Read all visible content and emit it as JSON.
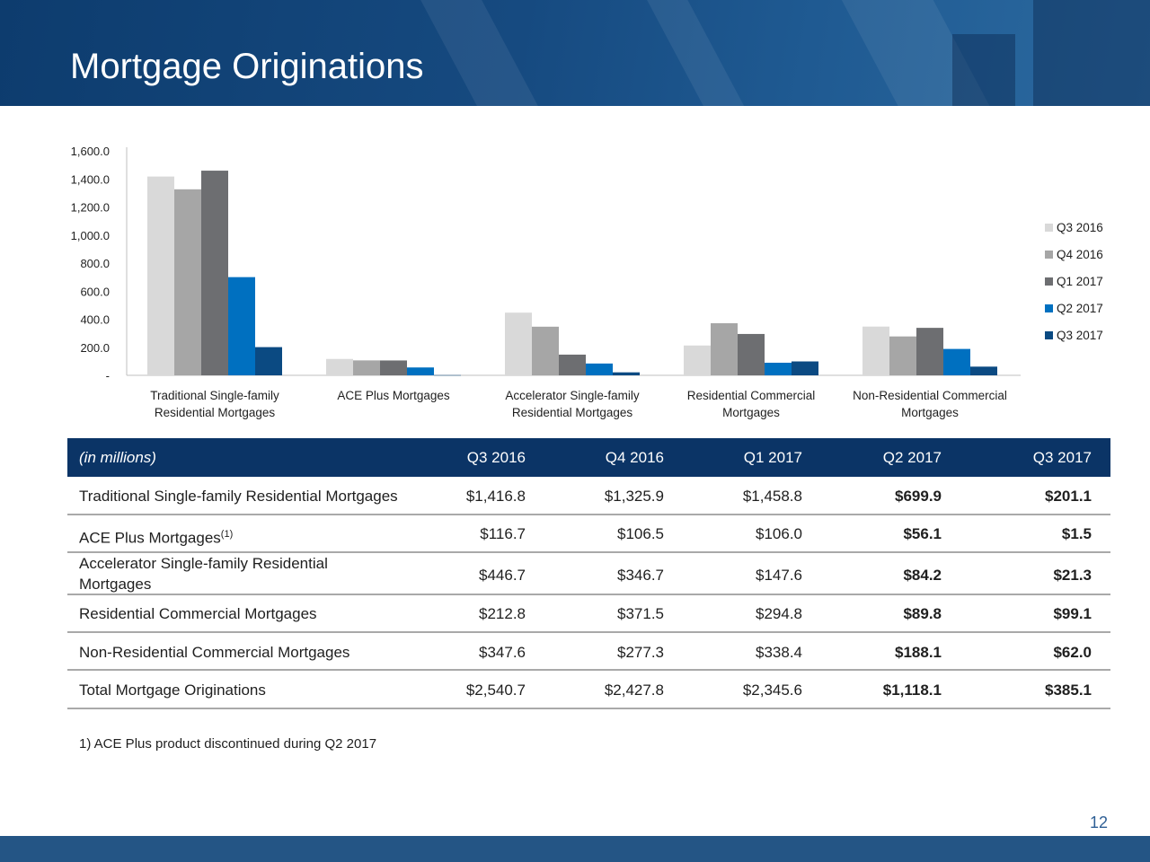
{
  "slide": {
    "title": "Mortgage Originations",
    "page_number": "12",
    "footnote": "1) ACE Plus product discontinued during Q2 2017"
  },
  "colors": {
    "header_bg": "#134679",
    "table_header_bg": "#0b3466",
    "footer_bar": "#245585"
  },
  "chart_data": {
    "type": "bar",
    "title": "",
    "xlabel": "",
    "ylabel": "",
    "ylim": [
      0,
      1600
    ],
    "yticks": [
      0,
      200,
      400,
      600,
      800,
      1000,
      1200,
      1400,
      1600
    ],
    "ytick_labels": [
      "-",
      "200.0",
      "400.0",
      "600.0",
      "800.0",
      "1,000.0",
      "1,200.0",
      "1,400.0",
      "1,600.0"
    ],
    "categories": [
      [
        "Traditional Single-family",
        "Residential Mortgages"
      ],
      [
        "ACE Plus Mortgages"
      ],
      [
        "Accelerator Single-family",
        "Residential Mortgages"
      ],
      [
        "Residential Commercial",
        "Mortgages"
      ],
      [
        "Non-Residential Commercial",
        "Mortgages"
      ]
    ],
    "legend_position": "right",
    "series": [
      {
        "name": "Q3 2016",
        "color": "#d9d9d9",
        "values": [
          1416.8,
          116.7,
          446.7,
          212.8,
          347.6
        ]
      },
      {
        "name": "Q4 2016",
        "color": "#a6a6a6",
        "values": [
          1325.9,
          106.5,
          346.7,
          371.5,
          277.3
        ]
      },
      {
        "name": "Q1 2017",
        "color": "#6d6e71",
        "values": [
          1458.8,
          106.0,
          147.6,
          294.8,
          338.4
        ]
      },
      {
        "name": "Q2 2017",
        "color": "#0070c0",
        "values": [
          699.9,
          56.1,
          84.2,
          89.8,
          188.1
        ]
      },
      {
        "name": "Q3 2017",
        "color": "#0b4a82",
        "values": [
          201.1,
          1.5,
          21.3,
          99.1,
          62.0
        ]
      }
    ]
  },
  "table": {
    "header": {
      "label": "(in millions)",
      "columns": [
        "Q3 2016",
        "Q4 2016",
        "Q1 2017",
        "Q2 2017",
        "Q3 2017"
      ]
    },
    "rows": [
      {
        "label": "Traditional Single-family Residential Mortgages",
        "values": [
          "$1,416.8",
          "$1,325.9",
          "$1,458.8",
          "$699.9",
          "$201.1"
        ]
      },
      {
        "label": "ACE Plus Mortgages",
        "label_sup": "(1)",
        "values": [
          "$116.7",
          "$106.5",
          "$106.0",
          "$56.1",
          "$1.5"
        ]
      },
      {
        "label_line1": "Accelerator Single-family Residential",
        "label_line2": "Mortgages",
        "values": [
          "$446.7",
          "$346.7",
          "$147.6",
          "$84.2",
          "$21.3"
        ]
      },
      {
        "label": "Residential Commercial Mortgages",
        "values": [
          "$212.8",
          "$371.5",
          "$294.8",
          "$89.8",
          "$99.1"
        ]
      },
      {
        "label": "Non-Residential Commercial Mortgages",
        "values": [
          "$347.6",
          "$277.3",
          "$338.4",
          "$188.1",
          "$62.0"
        ]
      },
      {
        "label": "Total Mortgage Originations",
        "values": [
          "$2,540.7",
          "$2,427.8",
          "$2,345.6",
          "$1,118.1",
          "$385.1"
        ]
      }
    ]
  }
}
